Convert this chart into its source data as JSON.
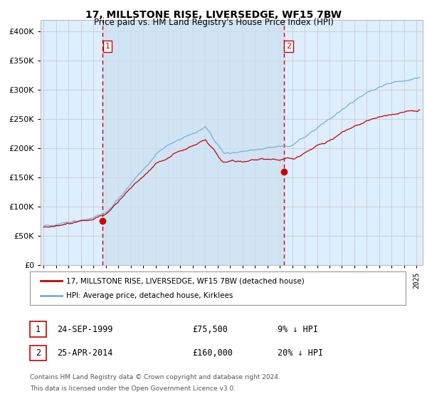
{
  "title": "17, MILLSTONE RISE, LIVERSEDGE, WF15 7BW",
  "subtitle": "Price paid vs. HM Land Registry's House Price Index (HPI)",
  "ylim": [
    0,
    420000
  ],
  "yticks": [
    0,
    50000,
    100000,
    150000,
    200000,
    250000,
    300000,
    350000,
    400000
  ],
  "xlim_start": 1994.75,
  "xlim_end": 2025.5,
  "bg_color": "#ddeeff",
  "grid_color": "#cccccc",
  "sale1_date_year": 1999.73,
  "sale1_price": 75500,
  "sale2_date_year": 2014.32,
  "sale2_price": 160000,
  "legend_line1": "17, MILLSTONE RISE, LIVERSEDGE, WF15 7BW (detached house)",
  "legend_line2": "HPI: Average price, detached house, Kirklees",
  "table_row1_num": "1",
  "table_row1_date": "24-SEP-1999",
  "table_row1_price": "£75,500",
  "table_row1_hpi": "9% ↓ HPI",
  "table_row2_num": "2",
  "table_row2_date": "25-APR-2014",
  "table_row2_price": "£160,000",
  "table_row2_hpi": "20% ↓ HPI",
  "footnote_line1": "Contains HM Land Registry data © Crown copyright and database right 2024.",
  "footnote_line2": "This data is licensed under the Open Government Licence v3.0.",
  "red_color": "#cc0000",
  "blue_color": "#7aaed6",
  "shade_color": "#cce0f0"
}
